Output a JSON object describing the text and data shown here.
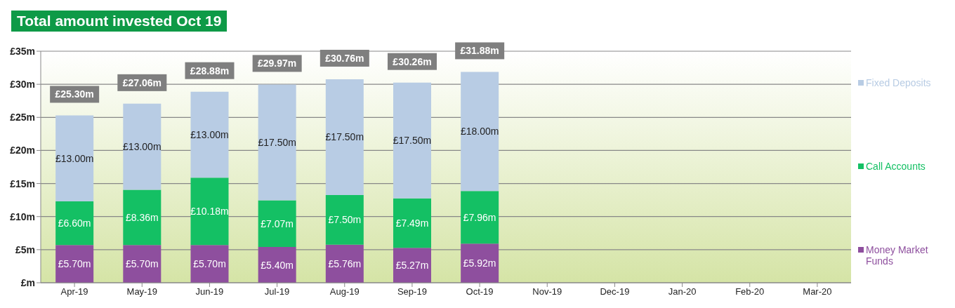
{
  "chart_data": {
    "type": "bar",
    "title": "Total amount invested Oct 19",
    "stacked": true,
    "categories": [
      "Apr-19",
      "May-19",
      "Jun-19",
      "Jul-19",
      "Aug-19",
      "Sep-19",
      "Oct-19",
      "Nov-19",
      "Dec-19",
      "Jan-20",
      "Feb-20",
      "Mar-20"
    ],
    "series": [
      {
        "name": "Money Market Funds",
        "color": "#8e4f9e",
        "values": [
          5.7,
          5.7,
          5.7,
          5.4,
          5.76,
          5.27,
          5.92,
          null,
          null,
          null,
          null,
          null
        ],
        "value_labels": [
          "£5.70m",
          "£5.70m",
          "£5.70m",
          "£5.40m",
          "£5.76m",
          "£5.27m",
          "£5.92m",
          null,
          null,
          null,
          null,
          null
        ]
      },
      {
        "name": "Call Accounts",
        "color": "#14c064",
        "values": [
          6.6,
          8.36,
          10.18,
          7.07,
          7.5,
          7.49,
          7.96,
          null,
          null,
          null,
          null,
          null
        ],
        "value_labels": [
          "£6.60m",
          "£8.36m",
          "£10.18m",
          "£7.07m",
          "£7.50m",
          "£7.49m",
          "£7.96m",
          null,
          null,
          null,
          null,
          null
        ]
      },
      {
        "name": "Fixed Deposits",
        "color": "#b8cce4",
        "values": [
          13,
          13,
          13,
          17.5,
          17.5,
          17.5,
          18,
          null,
          null,
          null,
          null,
          null
        ],
        "value_labels": [
          "£13.00m",
          "£13.00m",
          "£13.00m",
          "£17.50m",
          "£17.50m",
          "£17.50m",
          "£18.00m",
          null,
          null,
          null,
          null,
          null
        ]
      }
    ],
    "totals": [
      "£25.30m",
      "£27.06m",
      "£28.88m",
      "£29.97m",
      "£30.76m",
      "£30.26m",
      "£31.88m",
      null,
      null,
      null,
      null,
      null
    ],
    "ylim": [
      0,
      35
    ],
    "yticks": [
      {
        "value": 0,
        "label": "£m"
      },
      {
        "value": 5,
        "label": "£5m"
      },
      {
        "value": 10,
        "label": "£10m"
      },
      {
        "value": 15,
        "label": "£15m"
      },
      {
        "value": 20,
        "label": "£20m"
      },
      {
        "value": 25,
        "label": "£25m"
      },
      {
        "value": 30,
        "label": "£30m"
      },
      {
        "value": 35,
        "label": "£35m"
      }
    ],
    "grid": "y",
    "legend": "right"
  }
}
